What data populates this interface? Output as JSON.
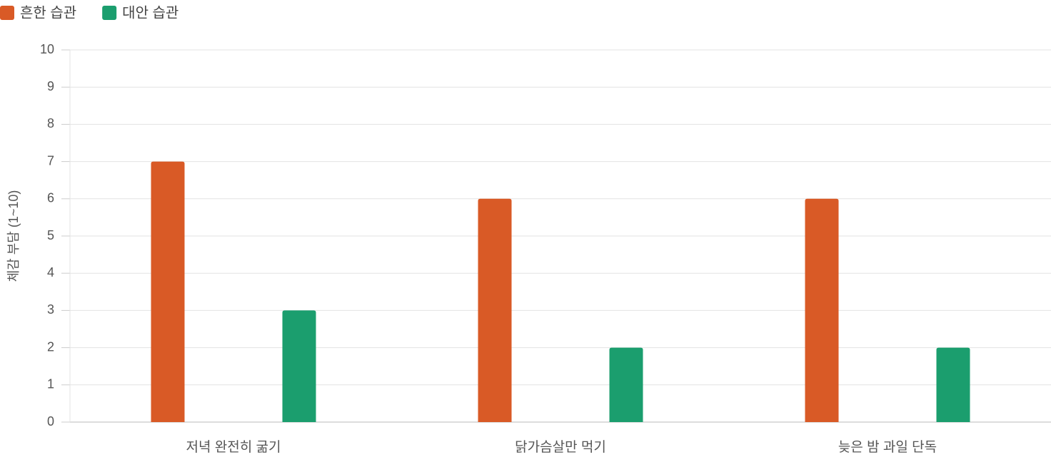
{
  "chart_data": {
    "type": "bar",
    "categories": [
      "저녁 완전히 굶기",
      "닭가슴살만 먹기",
      "늦은 밤 과일 단독"
    ],
    "series": [
      {
        "name": "흔한 습관",
        "color": "#d95a26",
        "values": [
          7,
          6,
          6
        ]
      },
      {
        "name": "대안 습관",
        "color": "#1b9e6e",
        "values": [
          3,
          2,
          2
        ]
      }
    ],
    "y_label": "체감 부담 (1~10)",
    "ylim": [
      0,
      10
    ],
    "yticks": [
      0,
      1,
      2,
      3,
      4,
      5,
      6,
      7,
      8,
      9,
      10
    ],
    "grid": true,
    "legend": "top-left"
  }
}
